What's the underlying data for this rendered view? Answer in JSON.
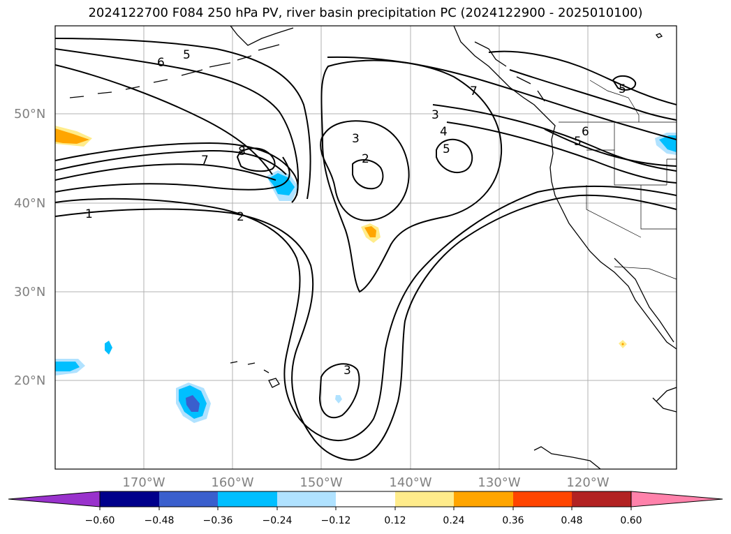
{
  "title": "2024122700 F084 250 hPa PV, river basin precipitation PC (2024122900 - 2025010100)",
  "latitude_labels": [
    "50°N",
    "40°N",
    "30°N",
    "20°N"
  ],
  "longitude_labels": [
    "170°W",
    "160°W",
    "150°W",
    "140°W",
    "130°W",
    "120°W"
  ],
  "pv_contour_labels": [
    "1",
    "2",
    "2",
    "3",
    "3",
    "4",
    "5",
    "5",
    "5",
    "6",
    "6",
    "7",
    "7",
    "8",
    "3",
    "5"
  ],
  "colorbar": {
    "tick_labels": [
      "−0.60",
      "−0.48",
      "−0.36",
      "−0.24",
      "−0.12",
      "0.12",
      "0.24",
      "0.36",
      "0.48",
      "0.60"
    ],
    "colors": [
      "#9932cc",
      "#00008b",
      "#3a5fcd",
      "#00bfff",
      "#b0e2ff",
      "#ffffff",
      "#ffec8b",
      "#ffa500",
      "#ff4500",
      "#b22222",
      "#ff82ab"
    ]
  }
}
